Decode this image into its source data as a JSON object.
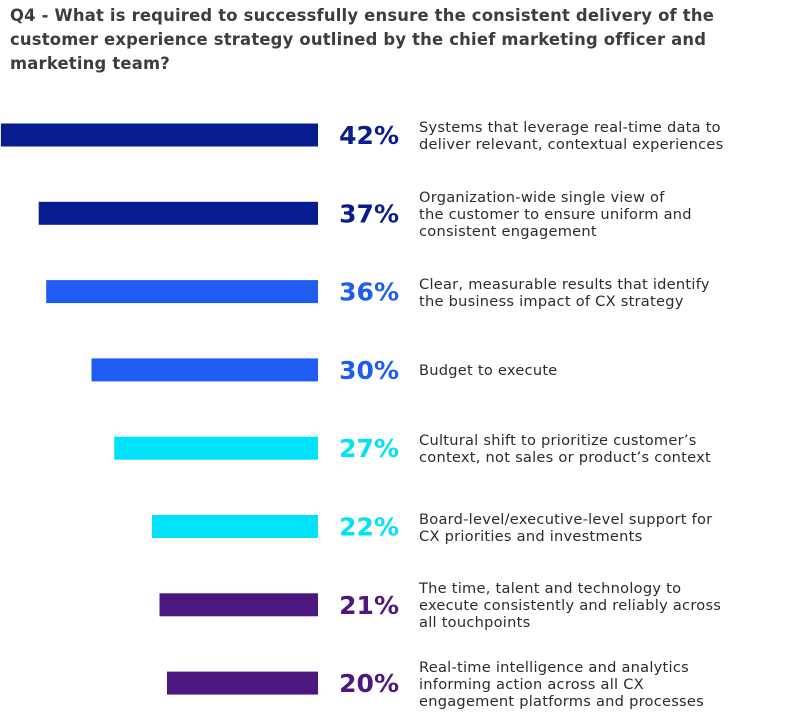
{
  "chart_data": {
    "type": "bar",
    "orientation": "horizontal",
    "title": "Q4 - What is required to successfully ensure the consistent delivery of the customer experience strategy outlined by the chief marketing officer and marketing team?",
    "value_suffix": "%",
    "colors": {
      "navy": "#071d8f",
      "blue": "#1e5cf2",
      "cyan": "#00e1fa",
      "purple": "#4c177f"
    },
    "series": [
      {
        "values": [
          42,
          37,
          36,
          30,
          27,
          22,
          21,
          20
        ]
      }
    ],
    "categories": [
      "Systems that leverage real-time data to\ndeliver relevant, contextual experiences",
      "Organization-wide single view of\nthe customer to ensure uniform and\nconsistent engagement",
      "Clear, measurable results that identify\nthe business impact of CX strategy",
      "Budget to execute",
      "Cultural shift to prioritize customer’s\ncontext, not sales or product’s context",
      "Board-level/executive-level support for\nCX priorities and investments",
      "The time, talent and technology to\nexecute consistently and reliably across\nall touchpoints",
      "Real-time intelligence and analytics\ninforming action across all CX\nengagement platforms and processes"
    ],
    "bar_colors": [
      "navy",
      "navy",
      "blue",
      "blue",
      "cyan",
      "cyan",
      "purple",
      "purple"
    ]
  }
}
